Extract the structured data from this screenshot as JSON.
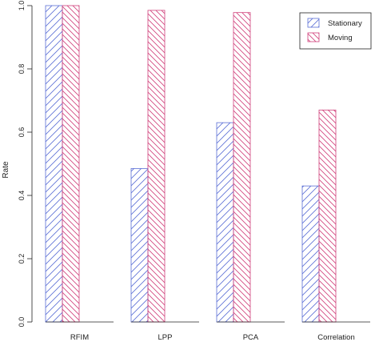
{
  "chart_data": {
    "type": "bar",
    "title": "",
    "xlabel": "",
    "ylabel": "Rate",
    "ylim": [
      0,
      1
    ],
    "yticks": [
      "0.0",
      "0.2",
      "0.4",
      "0.6",
      "0.8",
      "1.0"
    ],
    "categories": [
      "RFIM",
      "LPP",
      "PCA",
      "Correlation"
    ],
    "series": [
      {
        "name": "Stationary",
        "values": [
          1.0,
          0.485,
          0.63,
          0.43
        ],
        "color": "#5b6fd6",
        "hatch": "forward-diagonal"
      },
      {
        "name": "Moving",
        "values": [
          1.0,
          0.985,
          0.978,
          0.67
        ],
        "color": "#d0407a",
        "hatch": "backward-diagonal"
      }
    ],
    "legend_position": "top-right",
    "grid": false
  }
}
